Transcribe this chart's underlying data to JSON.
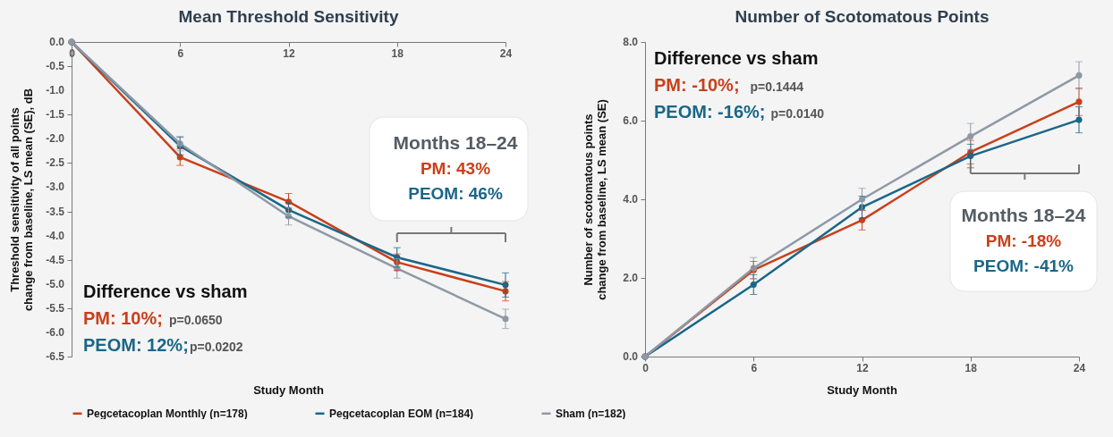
{
  "chart_data": [
    {
      "type": "line",
      "title": "Mean Threshold Sensitivity",
      "xlabel": "Study Month",
      "ylabel": "Threshold sensitivity of all points\nchange from baseline, LS mean (SE), dB",
      "x": [
        0,
        6,
        12,
        18,
        24
      ],
      "xlim": [
        0,
        24
      ],
      "xticks": [
        0,
        6,
        12,
        18,
        24
      ],
      "ylim": [
        -6.5,
        0
      ],
      "yticks": [
        {
          "value": -6.5,
          "label": "-6.5"
        },
        {
          "value": -6,
          "label": "-6.0"
        },
        -5.5,
        {
          "value": -5,
          "label": "-5.0"
        },
        -4.5,
        {
          "value": -4,
          "label": "-4.0"
        },
        -3.5,
        {
          "value": -3,
          "label": "-3.0"
        },
        -2.5,
        {
          "value": -2,
          "label": "-2.0"
        },
        -1.5,
        {
          "value": -1,
          "label": "-1.0"
        },
        -0.5,
        {
          "value": 0,
          "label": "0.0"
        }
      ],
      "grid": false,
      "legend": "bottom",
      "marker": "circle",
      "line_style": "solid",
      "series": [
        {
          "name": "Pegcetacoplan Monthly (n=178)",
          "color": "#c8401a",
          "values": [
            0,
            -2.38,
            -3.3,
            -4.55,
            -5.15
          ],
          "errors": [
            null,
            0.17,
            0.17,
            0.17,
            0.2
          ]
        },
        {
          "name": "Pegcetacoplan EOM (n=184)",
          "color": "#1a6688",
          "values": [
            0,
            -2.15,
            -3.47,
            -4.45,
            -5.02
          ],
          "errors": [
            null,
            0.18,
            0.15,
            0.2,
            0.25
          ]
        },
        {
          "name": "Sham (n=182)",
          "color": "#8e99a6",
          "values": [
            0,
            -2.1,
            -3.6,
            -4.68,
            -5.72
          ],
          "errors": [
            null,
            0.15,
            0.18,
            0.2,
            0.2
          ]
        }
      ],
      "annotations": [
        "Months 18–24",
        "PM: 43%",
        "PEOM: 46%",
        "Difference vs sham",
        "PM: 10%;",
        "p=0.0650",
        "PEOM: 12%;",
        "p=0.0202"
      ]
    },
    {
      "type": "line",
      "title": "Number of Scotomatous Points",
      "xlabel": "Study Month",
      "ylabel": "Number of scotomatous points\nchange from baseline, LS mean (SE)",
      "x": [
        0,
        6,
        12,
        18,
        24
      ],
      "xlim": [
        0,
        24
      ],
      "xticks": [
        0,
        6,
        12,
        18,
        24
      ],
      "ylim": [
        0,
        8
      ],
      "yticks": [
        {
          "value": 0,
          "label": "0.0"
        },
        {
          "value": 2,
          "label": "2.0"
        },
        {
          "value": 4,
          "label": "4.0"
        },
        {
          "value": 6,
          "label": "6.0"
        },
        {
          "value": 8,
          "label": "8.0"
        }
      ],
      "grid": false,
      "legend": "bottom",
      "marker": "circle",
      "line_style": "solid",
      "series": [
        {
          "name": "Pegcetacoplan Monthly (n=178)",
          "color": "#c8401a",
          "values": [
            0,
            2.2,
            3.47,
            5.2,
            6.48
          ],
          "errors": [
            null,
            0.22,
            0.25,
            0.3,
            0.35
          ]
        },
        {
          "name": "Pegcetacoplan EOM (n=184)",
          "color": "#1a6688",
          "values": [
            0,
            1.83,
            3.8,
            5.1,
            6.02
          ],
          "errors": [
            null,
            0.25,
            0.28,
            0.3,
            0.33
          ]
        },
        {
          "name": "Sham (n=182)",
          "color": "#8e99a6",
          "values": [
            0,
            2.25,
            4.0,
            5.6,
            7.15
          ],
          "errors": [
            null,
            0.27,
            0.28,
            0.33,
            0.35
          ]
        }
      ],
      "annotations": [
        "Months 18–24",
        "PM: -18%",
        "PEOM: -41%",
        "Difference vs sham",
        "PM: -10%;",
        "p=0.1444",
        "PEOM: -16%;",
        "p=0.0140"
      ]
    }
  ]
}
